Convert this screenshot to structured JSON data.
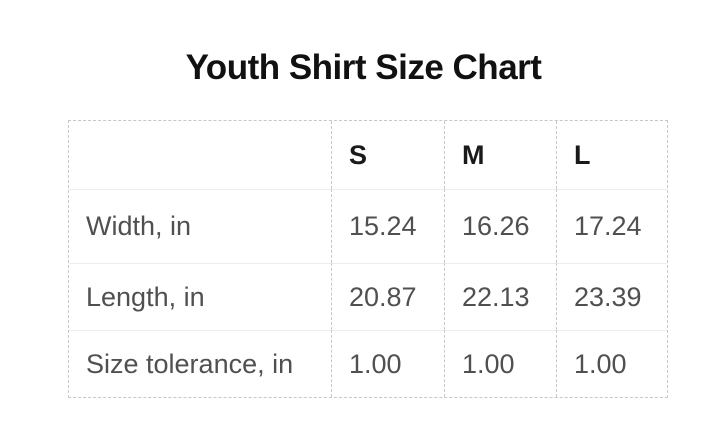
{
  "title": "Youth Shirt Size Chart",
  "table": {
    "columns": [
      "",
      "S",
      "M",
      "L"
    ],
    "rows": [
      {
        "label": "Width, in",
        "values": [
          "15.24",
          "16.26",
          "17.24"
        ]
      },
      {
        "label": "Length, in",
        "values": [
          "20.87",
          "22.13",
          "23.39"
        ]
      },
      {
        "label": "Size tolerance, in",
        "values": [
          "1.00",
          "1.00",
          "1.00"
        ]
      }
    ]
  },
  "chart_data": {
    "type": "table",
    "title": "Youth Shirt Size Chart",
    "columns": [
      "S",
      "M",
      "L"
    ],
    "rows": [
      {
        "label": "Width, in",
        "values": [
          15.24,
          16.26,
          17.24
        ]
      },
      {
        "label": "Length, in",
        "values": [
          20.87,
          22.13,
          23.39
        ]
      },
      {
        "label": "Size tolerance, in",
        "values": [
          1.0,
          1.0,
          1.0
        ]
      }
    ],
    "units": "in"
  },
  "colors": {
    "background": "#ffffff",
    "title_text": "#111111",
    "header_text": "#1a1a1a",
    "body_text": "#505050",
    "dashed_border": "#c7c7c7",
    "row_divider": "#ededed"
  }
}
